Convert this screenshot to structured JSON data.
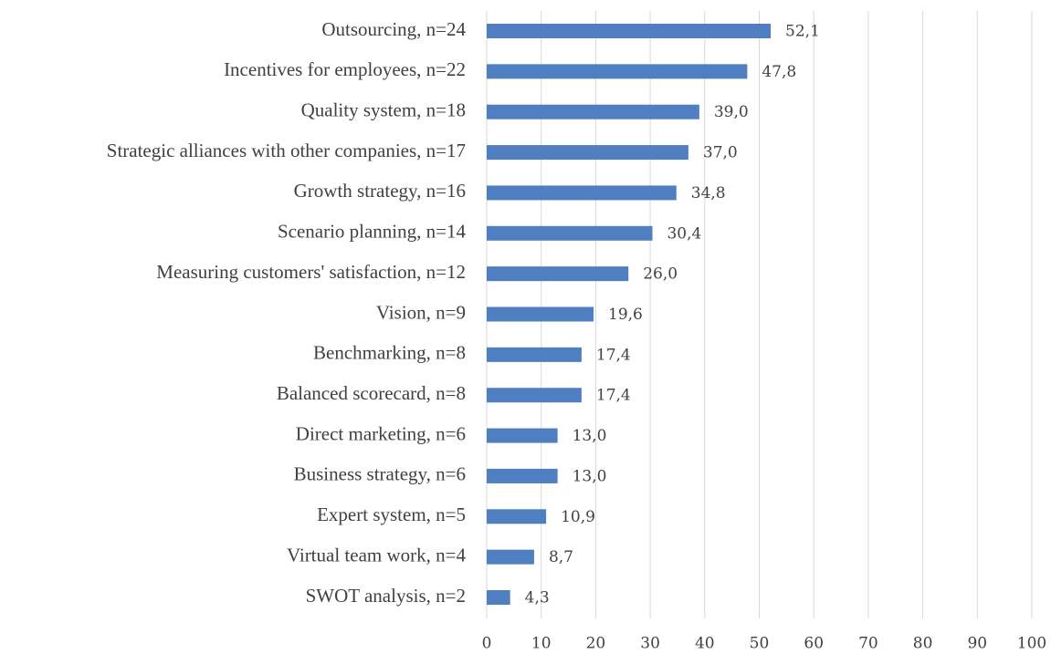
{
  "chart_data": {
    "type": "bar",
    "orientation": "horizontal",
    "categories": [
      "Outsourcing, n=24",
      "Incentives for employees, n=22",
      "Quality system, n=18",
      "Strategic alliances with other companies, n=17",
      "Growth strategy, n=16",
      "Scenario planning, n=14",
      "Measuring customers' satisfaction, n=12",
      "Vision, n=9",
      "Benchmarking, n=8",
      "Balanced scorecard, n=8",
      "Direct marketing, n=6",
      "Business strategy, n=6",
      "Expert system, n=5",
      "Virtual team work, n=4",
      "SWOT analysis, n=2"
    ],
    "values": [
      52.1,
      47.8,
      39.0,
      37.0,
      34.8,
      30.4,
      26.0,
      19.6,
      17.4,
      17.4,
      13.0,
      13.0,
      10.9,
      8.7,
      4.3
    ],
    "value_labels": [
      "52,1",
      "47,8",
      "39,0",
      "37,0",
      "34,8",
      "30,4",
      "26,0",
      "19,6",
      "17,4",
      "17,4",
      "13,0",
      "13,0",
      "10,9",
      "8,7",
      "4,3"
    ],
    "color": "#4f7fc1",
    "xlim": [
      0,
      100
    ],
    "xticks": [
      0,
      10,
      20,
      30,
      40,
      50,
      60,
      70,
      80,
      90,
      100
    ],
    "grid": true
  }
}
